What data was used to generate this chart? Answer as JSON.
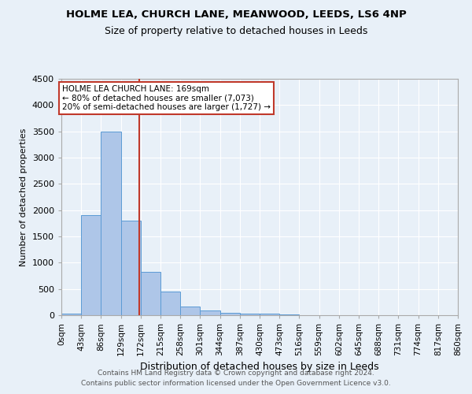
{
  "title1": "HOLME LEA, CHURCH LANE, MEANWOOD, LEEDS, LS6 4NP",
  "title2": "Size of property relative to detached houses in Leeds",
  "xlabel": "Distribution of detached houses by size in Leeds",
  "ylabel": "Number of detached properties",
  "footer1": "Contains HM Land Registry data © Crown copyright and database right 2024.",
  "footer2": "Contains public sector information licensed under the Open Government Licence v3.0.",
  "bar_edges": [
    0,
    43,
    86,
    129,
    172,
    215,
    258,
    301,
    344,
    387,
    430,
    473,
    516,
    559,
    602,
    645,
    688,
    731,
    774,
    817,
    860
  ],
  "bar_heights": [
    30,
    1900,
    3500,
    1800,
    830,
    450,
    160,
    90,
    50,
    30,
    25,
    20,
    0,
    0,
    0,
    0,
    0,
    0,
    0,
    0
  ],
  "bar_color": "#aec6e8",
  "bar_edgecolor": "#5b9bd5",
  "property_size": 169,
  "vline_color": "#c0392b",
  "annotation_line1": "HOLME LEA CHURCH LANE: 169sqm",
  "annotation_line2": "← 80% of detached houses are smaller (7,073)",
  "annotation_line3": "20% of semi-detached houses are larger (1,727) →",
  "annotation_box_edgecolor": "#c0392b",
  "annotation_box_facecolor": "#ffffff",
  "bg_color": "#e8f0f8",
  "plot_bg_color": "#e8f0f8",
  "tick_labels": [
    "0sqm",
    "43sqm",
    "86sqm",
    "129sqm",
    "172sqm",
    "215sqm",
    "258sqm",
    "301sqm",
    "344sqm",
    "387sqm",
    "430sqm",
    "473sqm",
    "516sqm",
    "559sqm",
    "602sqm",
    "645sqm",
    "688sqm",
    "731sqm",
    "774sqm",
    "817sqm",
    "860sqm"
  ],
  "ylim": [
    0,
    4500
  ],
  "yticks": [
    0,
    500,
    1000,
    1500,
    2000,
    2500,
    3000,
    3500,
    4000,
    4500
  ]
}
